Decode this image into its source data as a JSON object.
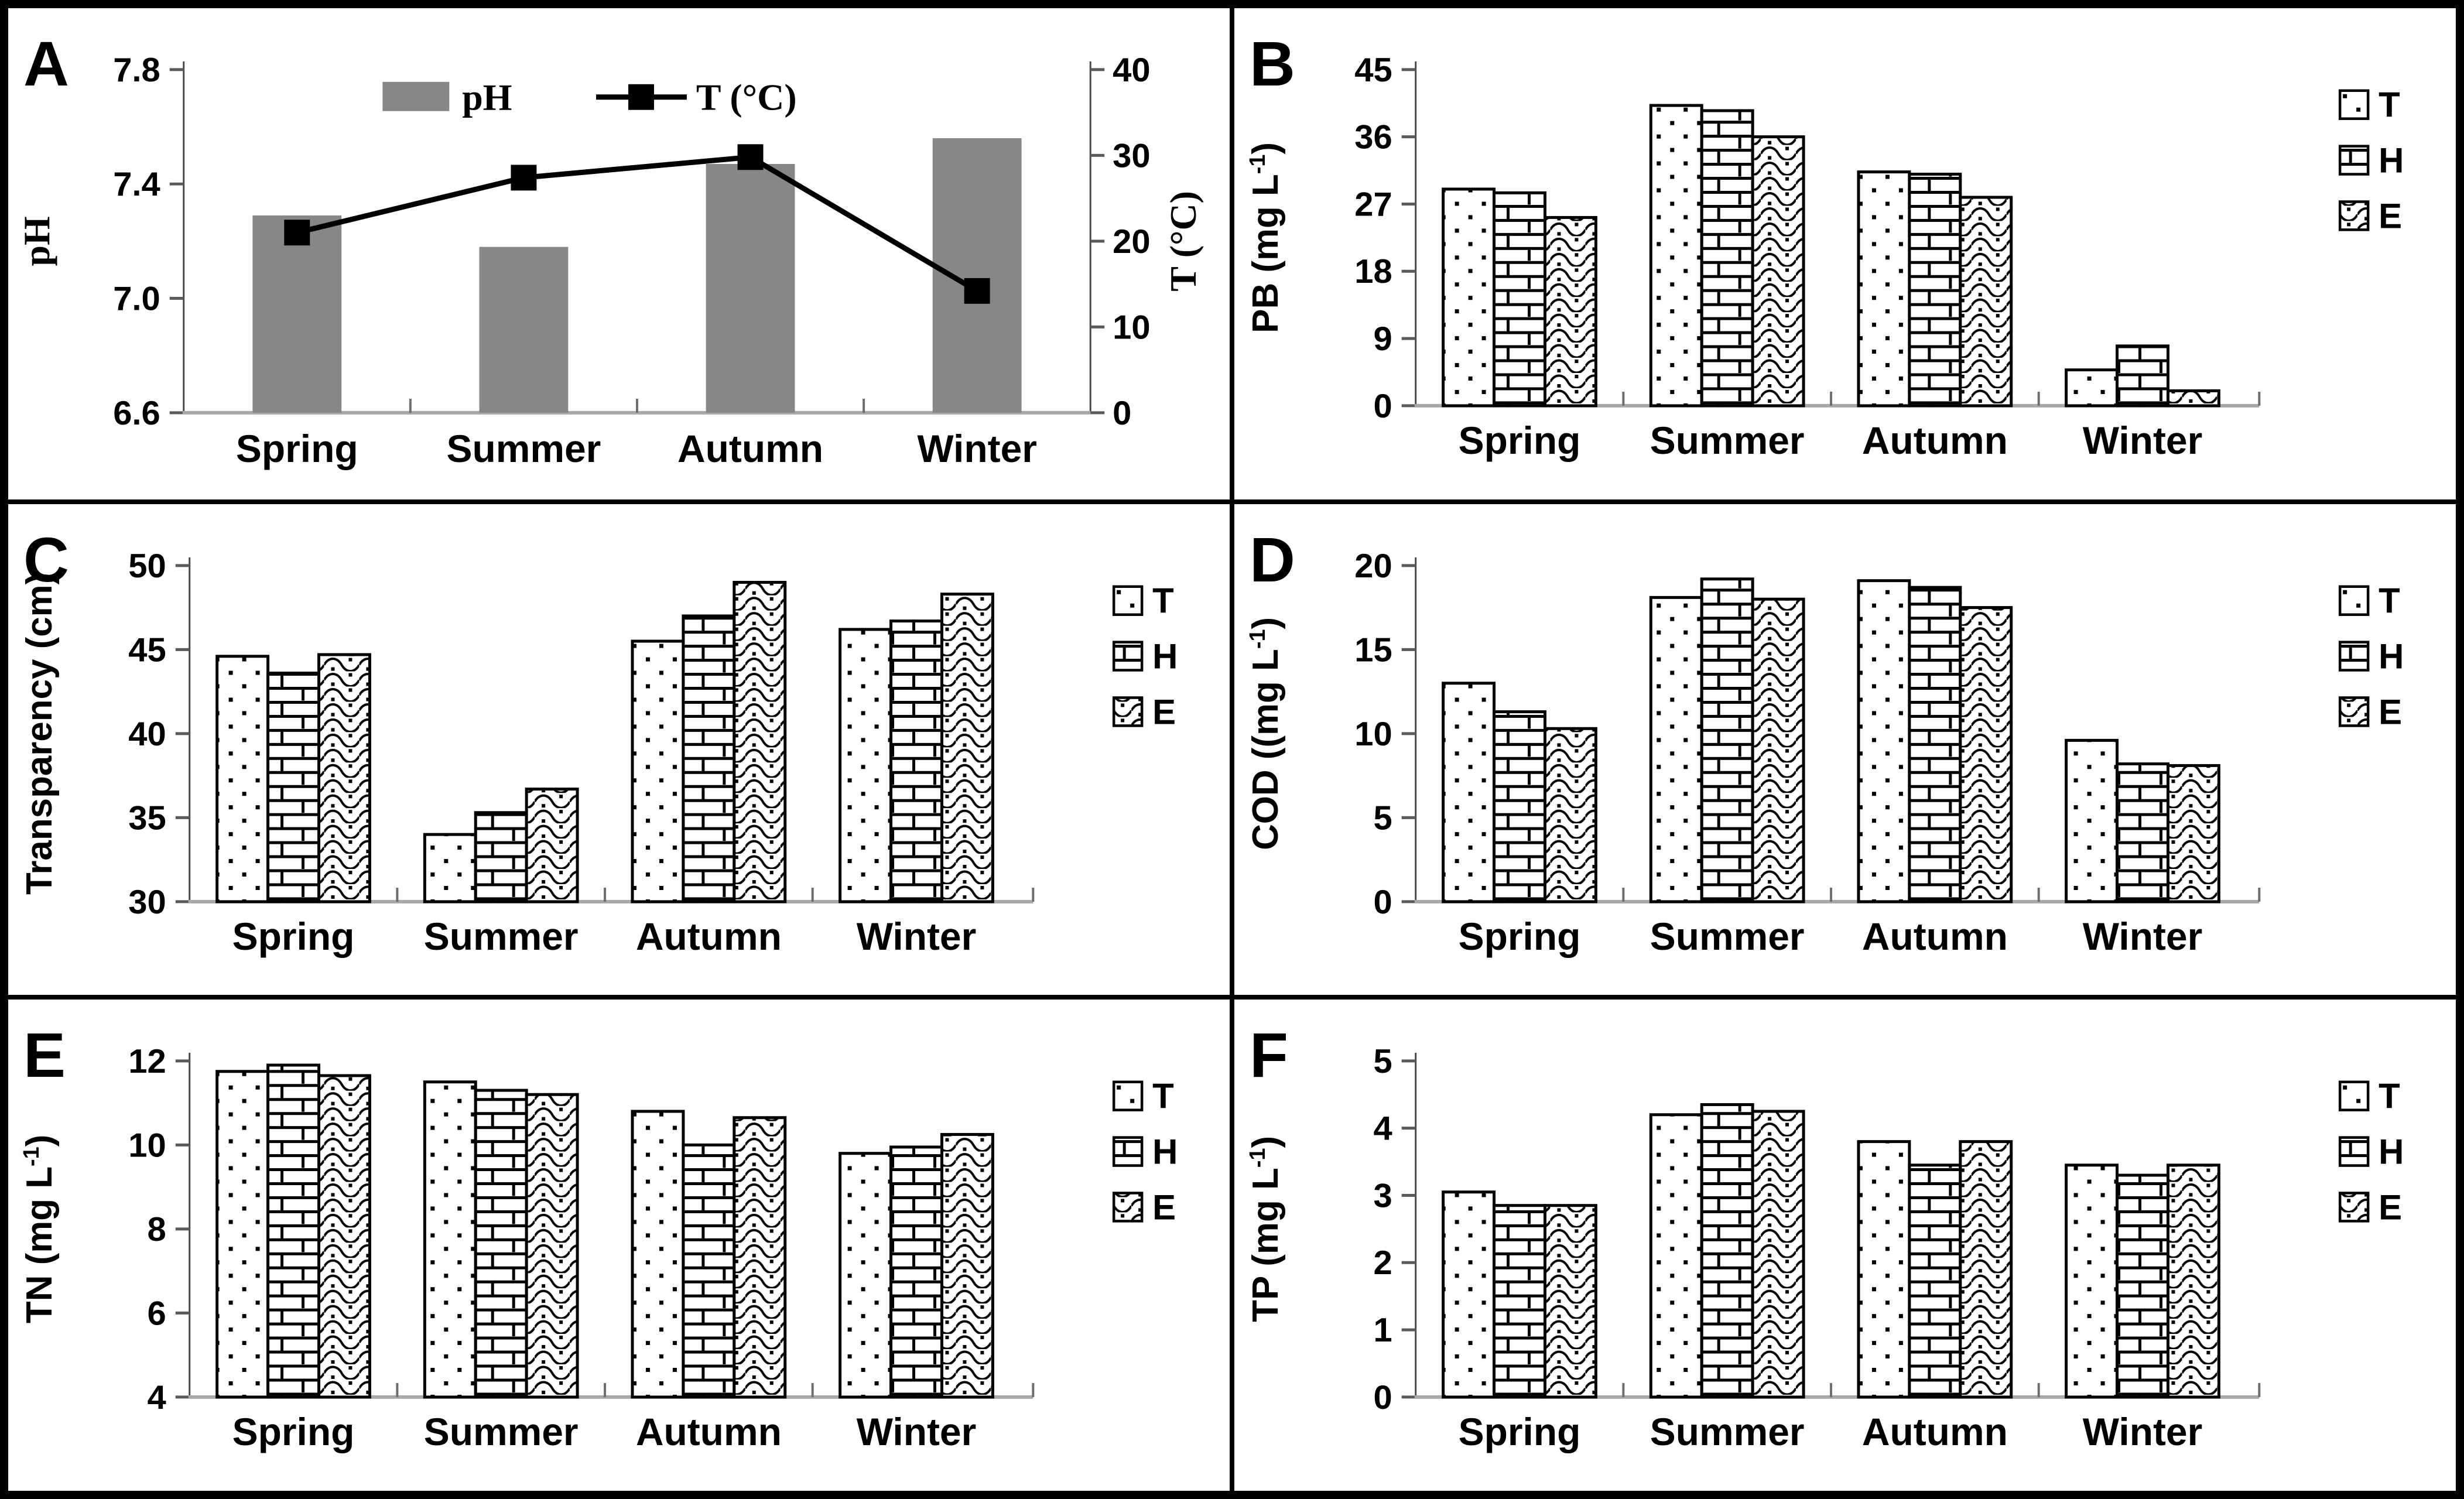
{
  "figure": {
    "description": "Six-panel seasonal water quality figure",
    "background": "#ffffff",
    "border_color": "#000000",
    "bar_gray": "#878787",
    "axis_line_color": "#4a4a4a",
    "baseline_color": "#a8a8a8",
    "tick_color": "#5a5a5a",
    "category_tick_color": "#6e6e6e",
    "seasons": [
      "Spring",
      "Summer",
      "Autumn",
      "Winter"
    ]
  },
  "chart_data": [
    {
      "panel": "A",
      "type": "bar+line",
      "categories": [
        "Spring",
        "Summer",
        "Autumn",
        "Winter"
      ],
      "bar_series": {
        "name": "pH",
        "values": [
          7.29,
          7.18,
          7.47,
          7.56
        ],
        "color": "#878787"
      },
      "line_series": {
        "name": "T (°C)",
        "values": [
          21.0,
          27.4,
          29.8,
          14.2
        ],
        "color": "#000000",
        "marker": "square"
      },
      "left_axis": {
        "label": "pH",
        "min": 6.6,
        "max": 7.8,
        "ticks": [
          6.6,
          7.0,
          7.4,
          7.8
        ],
        "tick_labels": [
          "6.6",
          "7.0",
          "7.4",
          "7.8"
        ]
      },
      "right_axis": {
        "label": "T (°C)",
        "min": 0,
        "max": 40,
        "ticks": [
          0,
          10,
          20,
          30,
          40
        ],
        "tick_labels": [
          "0",
          "10",
          "20",
          "30",
          "40"
        ]
      },
      "legend": [
        {
          "label": "pH",
          "swatch": "gray-rect"
        },
        {
          "label": "T (°C)",
          "swatch": "line-square-marker"
        }
      ],
      "grid": false
    },
    {
      "panel": "B",
      "type": "bar",
      "categories": [
        "Spring",
        "Summer",
        "Autumn",
        "Winter"
      ],
      "ylabel_parts": {
        "pre": "PB  (mg L",
        "sup": "-1",
        "post": ")"
      },
      "axis": {
        "min": 0,
        "max": 45,
        "ticks": [
          0,
          9,
          18,
          27,
          36,
          45
        ],
        "tick_labels": [
          "0",
          "9",
          "18",
          "27",
          "36",
          "45"
        ]
      },
      "series": [
        {
          "name": "T",
          "pattern": "dots",
          "values": [
            29.0,
            40.2,
            31.3,
            4.8
          ]
        },
        {
          "name": "H",
          "pattern": "brick",
          "values": [
            28.5,
            39.5,
            31.0,
            8.0
          ]
        },
        {
          "name": "E",
          "pattern": "wave",
          "values": [
            25.2,
            36.0,
            27.9,
            2.0
          ]
        }
      ],
      "legend_position": "right",
      "grid": false
    },
    {
      "panel": "C",
      "type": "bar",
      "categories": [
        "Spring",
        "Summer",
        "Autumn",
        "Winter"
      ],
      "ylabel_parts": {
        "pre": "Transparency (cm)",
        "sup": "",
        "post": ""
      },
      "axis": {
        "min": 30,
        "max": 50,
        "ticks": [
          30,
          35,
          40,
          45,
          50
        ],
        "tick_labels": [
          "30",
          "35",
          "40",
          "45",
          "50"
        ]
      },
      "series": [
        {
          "name": "T",
          "pattern": "dots",
          "values": [
            44.6,
            34.0,
            45.5,
            46.2
          ]
        },
        {
          "name": "H",
          "pattern": "brick",
          "values": [
            43.6,
            35.3,
            47.0,
            46.7
          ]
        },
        {
          "name": "E",
          "pattern": "wave",
          "values": [
            44.7,
            36.7,
            49.0,
            48.3
          ]
        }
      ],
      "legend_position": "right",
      "grid": false
    },
    {
      "panel": "D",
      "type": "bar",
      "categories": [
        "Spring",
        "Summer",
        "Autumn",
        "Winter"
      ],
      "ylabel_parts": {
        "pre": "COD  ((mg L",
        "sup": "-1",
        "post": ")"
      },
      "axis": {
        "min": 0,
        "max": 20,
        "ticks": [
          0,
          5,
          10,
          15,
          20
        ],
        "tick_labels": [
          "0",
          "5",
          "10",
          "15",
          "20"
        ]
      },
      "series": [
        {
          "name": "T",
          "pattern": "dots",
          "values": [
            13.0,
            18.1,
            19.1,
            9.6
          ]
        },
        {
          "name": "H",
          "pattern": "brick",
          "values": [
            11.3,
            19.2,
            18.7,
            8.2
          ]
        },
        {
          "name": "E",
          "pattern": "wave",
          "values": [
            10.3,
            18.0,
            17.5,
            8.1
          ]
        }
      ],
      "legend_position": "right",
      "grid": false
    },
    {
      "panel": "E",
      "type": "bar",
      "categories": [
        "Spring",
        "Summer",
        "Autumn",
        "Winter"
      ],
      "ylabel_parts": {
        "pre": "TN  (mg L",
        "sup": "-1",
        "post": ")"
      },
      "axis": {
        "min": 4,
        "max": 12,
        "ticks": [
          4,
          6,
          8,
          10,
          12
        ],
        "tick_labels": [
          "4",
          "6",
          "8",
          "10",
          "12"
        ]
      },
      "series": [
        {
          "name": "T",
          "pattern": "dots",
          "values": [
            11.75,
            11.5,
            10.8,
            9.8
          ]
        },
        {
          "name": "H",
          "pattern": "brick",
          "values": [
            11.9,
            11.3,
            10.0,
            9.95
          ]
        },
        {
          "name": "E",
          "pattern": "wave",
          "values": [
            11.65,
            11.2,
            10.65,
            10.25
          ]
        }
      ],
      "legend_position": "right",
      "grid": false
    },
    {
      "panel": "F",
      "type": "bar",
      "categories": [
        "Spring",
        "Summer",
        "Autumn",
        "Winter"
      ],
      "ylabel_parts": {
        "pre": "TP  (mg L",
        "sup": "-1",
        "post": ")"
      },
      "axis": {
        "min": 0,
        "max": 5,
        "ticks": [
          0,
          1,
          2,
          3,
          4,
          5
        ],
        "tick_labels": [
          "0",
          "1",
          "2",
          "3",
          "4",
          "5"
        ]
      },
      "series": [
        {
          "name": "T",
          "pattern": "dots",
          "values": [
            3.05,
            4.2,
            3.8,
            3.45
          ]
        },
        {
          "name": "H",
          "pattern": "brick",
          "values": [
            2.85,
            4.35,
            3.45,
            3.3
          ]
        },
        {
          "name": "E",
          "pattern": "wave",
          "values": [
            2.85,
            4.25,
            3.8,
            3.45
          ]
        }
      ],
      "legend_position": "right",
      "grid": false
    }
  ]
}
